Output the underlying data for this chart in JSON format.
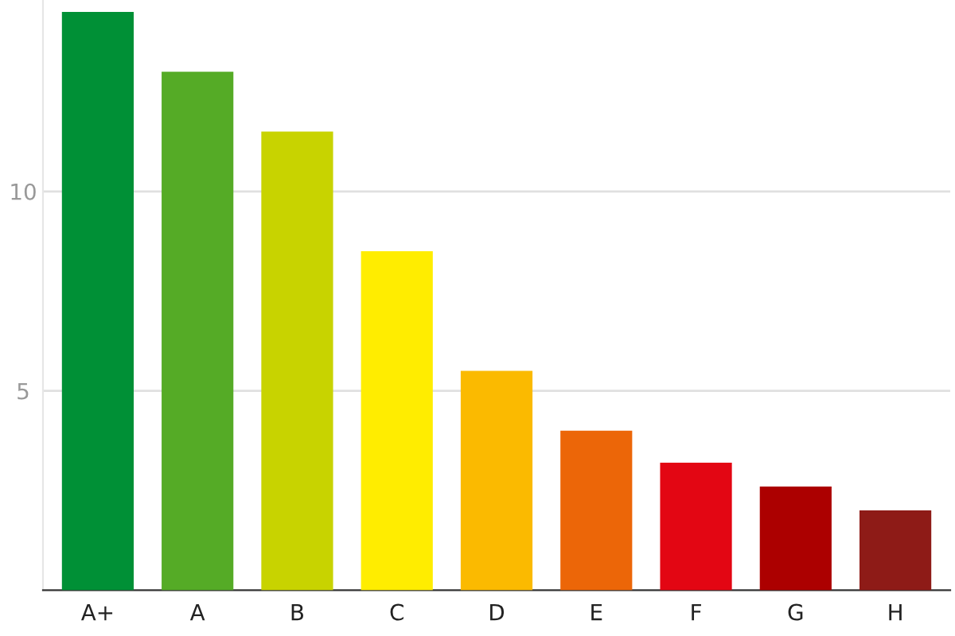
{
  "chart_data": {
    "type": "bar",
    "categories": [
      "A+",
      "A",
      "B",
      "C",
      "D",
      "E",
      "F",
      "G",
      "H"
    ],
    "values": [
      14.5,
      13.0,
      11.5,
      8.5,
      5.5,
      4.0,
      3.2,
      2.6,
      2.0
    ],
    "colors": [
      "#009036",
      "#55ab26",
      "#c8d300",
      "#ffed00",
      "#fbba00",
      "#ec6608",
      "#e30613",
      "#ac0000",
      "#8e1b17"
    ],
    "ylim": [
      0,
      14.8
    ],
    "yticks": [
      5,
      10
    ],
    "grid": "y"
  }
}
